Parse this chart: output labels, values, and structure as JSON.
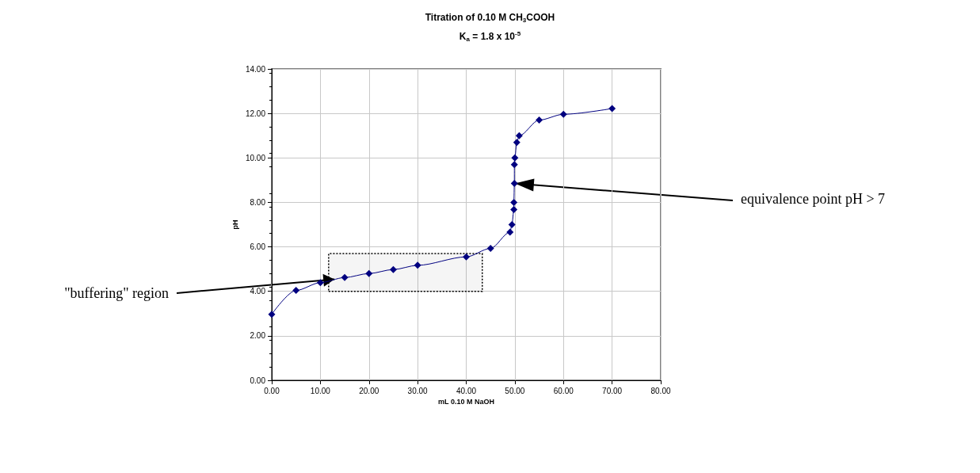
{
  "chart_data": {
    "type": "line",
    "title": "Titration of 0.10 M CH$_{3}$COOH",
    "subtitle": "K$_{a}$ = 1.8 x 10$^{-5}$",
    "xlabel": "mL 0.10 M NaOH",
    "ylabel": "pH",
    "x": [
      0,
      5,
      10,
      15,
      20,
      25,
      30,
      40,
      45,
      49,
      49.4,
      49.8,
      49.8,
      49.9,
      49.9,
      50,
      50.4,
      50.9,
      55,
      60,
      70
    ],
    "values": [
      2.97,
      4.04,
      4.39,
      4.62,
      4.8,
      4.98,
      5.17,
      5.55,
      5.93,
      6.66,
      7.0,
      7.68,
      8.0,
      8.85,
      9.7,
      10.0,
      10.7,
      11.0,
      11.7,
      11.96,
      12.22
    ],
    "color": "#000080",
    "marker": "diamond",
    "line_style": "solid",
    "grid": true,
    "xlim": [
      0,
      80
    ],
    "xticks": [
      {
        "value": 0,
        "label": "0.00"
      },
      {
        "value": 10,
        "label": "10.00"
      },
      {
        "value": 20,
        "label": "20.00"
      },
      {
        "value": 30,
        "label": "30.00"
      },
      {
        "value": 40,
        "label": "40.00"
      },
      {
        "value": 50,
        "label": "50.00"
      },
      {
        "value": 60,
        "label": "60.00"
      },
      {
        "value": 70,
        "label": "70.00"
      },
      {
        "value": 80,
        "label": "80.00"
      }
    ],
    "ylim": [
      0,
      14
    ],
    "yticks": [
      {
        "value": 0,
        "label": "0.00"
      },
      {
        "value": 2,
        "label": "2.00"
      },
      {
        "value": 4,
        "label": "4.00"
      },
      {
        "value": 6,
        "label": "6.00"
      },
      {
        "value": 8,
        "label": "8.00"
      },
      {
        "value": 10,
        "label": "10.00"
      },
      {
        "value": 12,
        "label": "12.00"
      },
      {
        "value": 14,
        "label": "14.00"
      }
    ],
    "bands": [
      {
        "axis": "x",
        "from": 11.7,
        "to": 43.3
      }
    ],
    "annotations": [
      {
        "text": "\"buffering\" region",
        "x": 12.9,
        "y": 4.54
      },
      {
        "text": "equivalence point pH > 7",
        "x": 50,
        "y": 8.85
      }
    ]
  }
}
